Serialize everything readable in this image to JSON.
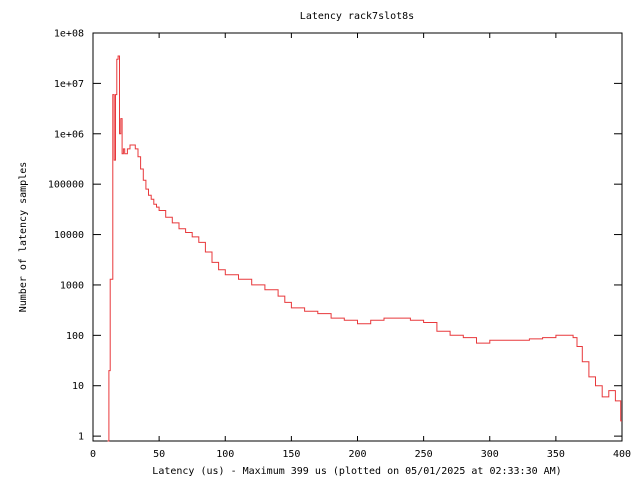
{
  "chart_data": {
    "type": "line",
    "title": "Latency rack7slot8s",
    "xlabel": "Latency (us) - Maximum 399 us (plotted on 05/01/2025 at 02:33:30 AM)",
    "ylabel": "Number of latency samples",
    "xlim": [
      0,
      400
    ],
    "ylim": [
      0.8,
      100000000
    ],
    "yscale": "log",
    "grid": false,
    "line_color": "#e8383b",
    "xticks": [
      0,
      50,
      100,
      150,
      200,
      250,
      300,
      350,
      400
    ],
    "xtick_labels": [
      "0",
      "50",
      "100",
      "150",
      "200",
      "250",
      "300",
      "350",
      "400"
    ],
    "yticks": [
      1,
      10,
      100,
      1000,
      10000,
      100000,
      1000000,
      10000000,
      100000000
    ],
    "ytick_labels": [
      "1",
      "10",
      "100",
      "1000",
      "10000",
      "100000",
      "1e+06",
      "1e+07",
      "1e+08"
    ],
    "series": [
      {
        "x": [
          11,
          12,
          13,
          14,
          15,
          16,
          17,
          18,
          19,
          20,
          21,
          22,
          23,
          24,
          25,
          26,
          28,
          30,
          32,
          34,
          36,
          38,
          40,
          42,
          44,
          46,
          48,
          50,
          55,
          60,
          65,
          70,
          75,
          80,
          85,
          90,
          95,
          100,
          110,
          120,
          130,
          140,
          145,
          150,
          160,
          170,
          180,
          190,
          200,
          210,
          220,
          230,
          240,
          245,
          250,
          260,
          270,
          280,
          290,
          300,
          310,
          320,
          330,
          340,
          350,
          358,
          363,
          366,
          370,
          375,
          380,
          385,
          390,
          395,
          399
        ],
        "y": [
          0.8,
          20,
          1300,
          1300,
          6000000,
          300000,
          6000000,
          30000000,
          35000000,
          1000000,
          2000000,
          400000,
          500000,
          400000,
          400000,
          500000,
          600000,
          600000,
          500000,
          350000,
          200000,
          120000,
          80000,
          60000,
          50000,
          40000,
          35000,
          30000,
          22000,
          17000,
          13000,
          11000,
          9000,
          7000,
          4500,
          2800,
          2000,
          1600,
          1300,
          1000,
          800,
          600,
          450,
          350,
          300,
          270,
          220,
          200,
          170,
          200,
          220,
          220,
          200,
          200,
          180,
          120,
          100,
          90,
          70,
          80,
          80,
          80,
          85,
          90,
          100,
          100,
          90,
          60,
          30,
          15,
          10,
          6,
          8,
          5,
          2
        ]
      }
    ]
  }
}
